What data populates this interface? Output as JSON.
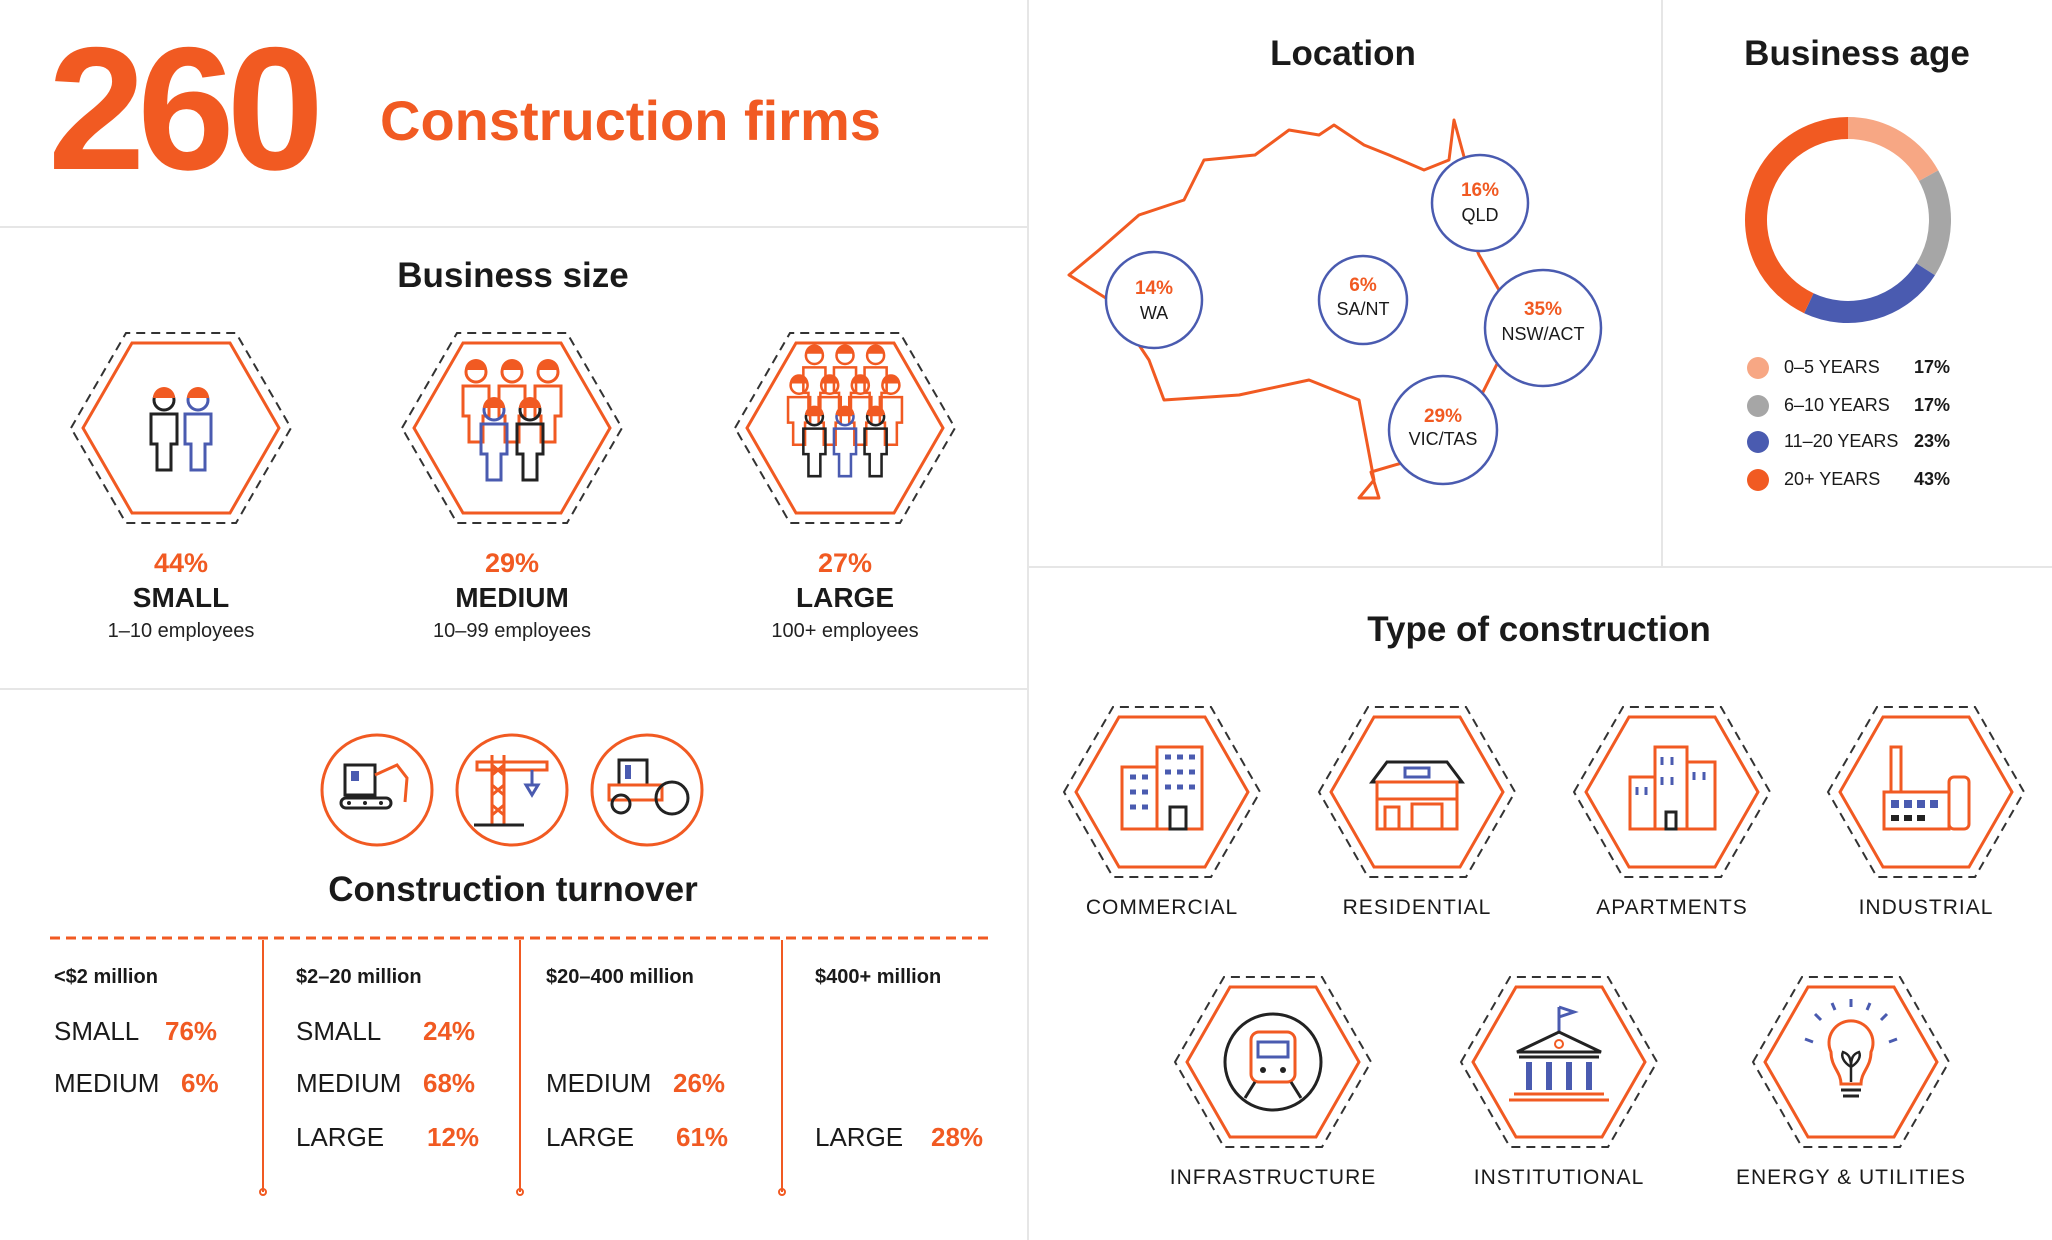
{
  "header": {
    "number": "260",
    "title": "Construction firms"
  },
  "business_size": {
    "title": "Business size",
    "items": [
      {
        "pct": "44%",
        "label": "SMALL",
        "sub": "1–10 employees"
      },
      {
        "pct": "29%",
        "label": "MEDIUM",
        "sub": "10–99 employees"
      },
      {
        "pct": "27%",
        "label": "LARGE",
        "sub": "100+ employees"
      }
    ]
  },
  "turnover": {
    "title": "Construction turnover",
    "columns": [
      {
        "head": "<$2 million",
        "rows": [
          {
            "label": "SMALL",
            "value": "76%"
          },
          {
            "label": "MEDIUM",
            "value": "6%"
          }
        ]
      },
      {
        "head": "$2–20 million",
        "rows": [
          {
            "label": "SMALL",
            "value": "24%"
          },
          {
            "label": "MEDIUM",
            "value": "68%"
          },
          {
            "label": "LARGE",
            "value": "12%"
          }
        ]
      },
      {
        "head": "$20–400 million",
        "rows": [
          {
            "label": "MEDIUM",
            "value": "26%"
          },
          {
            "label": "LARGE",
            "value": "61%"
          }
        ]
      },
      {
        "head": "$400+ million",
        "rows": [
          {
            "label": "LARGE",
            "value": "28%"
          }
        ]
      }
    ]
  },
  "location": {
    "title": "Location",
    "regions": [
      {
        "pct": "14%",
        "name": "WA"
      },
      {
        "pct": "6%",
        "name": "SA/NT"
      },
      {
        "pct": "16%",
        "name": "QLD"
      },
      {
        "pct": "35%",
        "name": "NSW/ACT"
      },
      {
        "pct": "29%",
        "name": "VIC/TAS"
      }
    ]
  },
  "business_age": {
    "title": "Business age",
    "legend": [
      {
        "label": "0–5 YEARS",
        "value": "17%"
      },
      {
        "label": "6–10 YEARS",
        "value": "17%"
      },
      {
        "label": "11–20 YEARS",
        "value": "23%"
      },
      {
        "label": "20+ YEARS",
        "value": "43%"
      }
    ]
  },
  "construction_type": {
    "title": "Type of construction",
    "items": [
      "COMMERCIAL",
      "RESIDENTIAL",
      "APARTMENTS",
      "INDUSTRIAL",
      "INFRASTRUCTURE",
      "INSTITUTIONAL",
      "ENERGY & UTILITIES"
    ]
  },
  "colors": {
    "accent": "#f15a22",
    "blue": "#4a5bb0",
    "grey": "#a6a6a6",
    "peach": "#f7a784",
    "line": "#e6e6e6"
  },
  "chart_data": [
    {
      "type": "pie",
      "title": "Business age",
      "categories": [
        "0–5 YEARS",
        "6–10 YEARS",
        "11–20 YEARS",
        "20+ YEARS"
      ],
      "values": [
        17,
        17,
        23,
        43
      ],
      "colors": [
        "#f7a784",
        "#a6a6a6",
        "#4a5bb0",
        "#f15a22"
      ],
      "legend": "bottom"
    },
    {
      "type": "bar",
      "title": "Business size",
      "categories": [
        "SMALL",
        "MEDIUM",
        "LARGE"
      ],
      "values": [
        44,
        29,
        27
      ]
    },
    {
      "type": "bar",
      "title": "Location",
      "categories": [
        "WA",
        "SA/NT",
        "QLD",
        "NSW/ACT",
        "VIC/TAS"
      ],
      "values": [
        14,
        6,
        16,
        35,
        29
      ]
    },
    {
      "type": "table",
      "title": "Construction turnover",
      "categories": [
        "<$2 million",
        "$2–20 million",
        "$20–400 million",
        "$400+ million"
      ],
      "series": [
        {
          "name": "SMALL",
          "values": [
            76,
            24,
            null,
            null
          ]
        },
        {
          "name": "MEDIUM",
          "values": [
            6,
            68,
            26,
            null
          ]
        },
        {
          "name": "LARGE",
          "values": [
            null,
            12,
            61,
            28
          ]
        }
      ]
    }
  ]
}
